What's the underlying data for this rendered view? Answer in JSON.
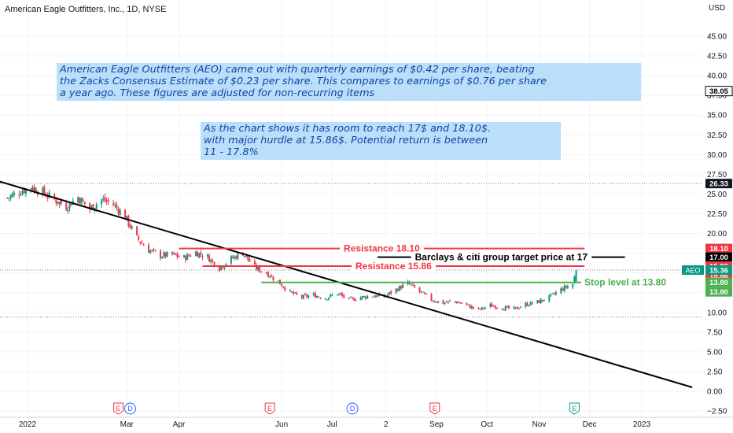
{
  "header": {
    "title": "American Eagle Outfitters, Inc., 1D, NYSE"
  },
  "annotations": {
    "note1": [
      "American Eagle Outfitters (AEO) came out with quarterly earnings of $0.42 per share, beating",
      "the Zacks Consensus Estimate of $0.23 per share. This compares to earnings of $0.76 per share",
      "a year ago. These figures are adjusted for non-recurring items"
    ],
    "note2": [
      "As the chart shows it has room to reach 17$ and 18.10$.",
      "with major hurdle at 15.86$. Potential return is between",
      "11 - 17.8%"
    ]
  },
  "chart_data": {
    "type": "candlestick",
    "symbol": "AEO",
    "currency": "USD",
    "ylim": [
      -2.5,
      46
    ],
    "y_ticks": [
      -2.5,
      0,
      2.5,
      5,
      7.5,
      10,
      12.5,
      15,
      17.5,
      20,
      22.5,
      25,
      27.5,
      30,
      32.5,
      35,
      37.5,
      40,
      42.5,
      45
    ],
    "y_tick_labels": [
      "−2.50",
      "0.00",
      "2.50",
      "5.00",
      "7.50",
      "10.00",
      "12.50",
      "15.00",
      "17.50",
      "20.00",
      "22.50",
      "25.00",
      "27.50",
      "30.00",
      "32.50",
      "35.00",
      "37.50",
      "40.00",
      "42.50",
      "45.00"
    ],
    "x_tick_labels": [
      {
        "date": "2022-01-01",
        "label": "2022"
      },
      {
        "date": "2022-03-01",
        "label": "Mar"
      },
      {
        "date": "2022-04-01",
        "label": "Apr"
      },
      {
        "date": "2022-06-01",
        "label": "Jun"
      },
      {
        "date": "2022-07-01",
        "label": "Jul"
      },
      {
        "date": "2022-08-02",
        "label": "2"
      },
      {
        "date": "2022-09-01",
        "label": "Sep"
      },
      {
        "date": "2022-10-01",
        "label": "Oct"
      },
      {
        "date": "2022-11-01",
        "label": "Nov"
      },
      {
        "date": "2022-12-01",
        "label": "Dec"
      },
      {
        "date": "2023-01-01",
        "label": "2023"
      }
    ],
    "price_series": [
      {
        "date": "2021-12-20",
        "close": 24.5
      },
      {
        "date": "2021-12-27",
        "close": 25.3
      },
      {
        "date": "2022-01-03",
        "close": 25.9
      },
      {
        "date": "2022-01-10",
        "close": 25.2
      },
      {
        "date": "2022-01-17",
        "close": 24.3
      },
      {
        "date": "2022-01-24",
        "close": 23.4
      },
      {
        "date": "2022-01-31",
        "close": 24.6
      },
      {
        "date": "2022-02-07",
        "close": 23.1
      },
      {
        "date": "2022-02-14",
        "close": 24.3
      },
      {
        "date": "2022-02-21",
        "close": 23.7
      },
      {
        "date": "2022-02-28",
        "close": 22.1
      },
      {
        "date": "2022-03-07",
        "close": 19.4
      },
      {
        "date": "2022-03-14",
        "close": 17.9
      },
      {
        "date": "2022-03-21",
        "close": 17.2
      },
      {
        "date": "2022-03-28",
        "close": 17.3
      },
      {
        "date": "2022-04-04",
        "close": 16.9
      },
      {
        "date": "2022-04-11",
        "close": 17.6
      },
      {
        "date": "2022-04-18",
        "close": 17.0
      },
      {
        "date": "2022-04-25",
        "close": 15.6
      },
      {
        "date": "2022-05-02",
        "close": 16.8
      },
      {
        "date": "2022-05-09",
        "close": 17.5
      },
      {
        "date": "2022-05-16",
        "close": 15.7
      },
      {
        "date": "2022-05-23",
        "close": 15.0
      },
      {
        "date": "2022-05-30",
        "close": 13.9
      },
      {
        "date": "2022-06-06",
        "close": 12.5
      },
      {
        "date": "2022-06-13",
        "close": 11.9
      },
      {
        "date": "2022-06-20",
        "close": 12.2
      },
      {
        "date": "2022-06-27",
        "close": 11.8
      },
      {
        "date": "2022-07-04",
        "close": 12.4
      },
      {
        "date": "2022-07-11",
        "close": 11.6
      },
      {
        "date": "2022-07-18",
        "close": 11.9
      },
      {
        "date": "2022-07-25",
        "close": 12.1
      },
      {
        "date": "2022-08-01",
        "close": 12.0
      },
      {
        "date": "2022-08-08",
        "close": 12.9
      },
      {
        "date": "2022-08-15",
        "close": 13.7
      },
      {
        "date": "2022-08-22",
        "close": 12.6
      },
      {
        "date": "2022-08-29",
        "close": 11.6
      },
      {
        "date": "2022-09-05",
        "close": 11.2
      },
      {
        "date": "2022-09-12",
        "close": 11.4
      },
      {
        "date": "2022-09-19",
        "close": 10.9
      },
      {
        "date": "2022-09-26",
        "close": 10.3
      },
      {
        "date": "2022-10-03",
        "close": 10.9
      },
      {
        "date": "2022-10-10",
        "close": 10.6
      },
      {
        "date": "2022-10-17",
        "close": 10.4
      },
      {
        "date": "2022-10-24",
        "close": 11.0
      },
      {
        "date": "2022-10-31",
        "close": 11.3
      },
      {
        "date": "2022-11-07",
        "close": 11.9
      },
      {
        "date": "2022-11-14",
        "close": 12.9
      },
      {
        "date": "2022-11-21",
        "close": 13.6
      },
      {
        "date": "2022-11-23",
        "close": 15.36
      }
    ],
    "trendline": {
      "start": {
        "date": "2021-12-01",
        "value": 27.5
      },
      "end": {
        "date": "2023-01-31",
        "value": 0.5
      }
    },
    "levels": [
      {
        "name": "Resistance 18.10",
        "value": 18.1,
        "start": "2022-04-01",
        "end": "2022-11-28",
        "color": "#f23645",
        "label": "Resistance 18.10"
      },
      {
        "name": "Resistance 15.86",
        "value": 15.86,
        "start": "2022-04-15",
        "end": "2022-11-28",
        "color": "#f23645",
        "label": "Resistance 15.86"
      },
      {
        "name": "Barclays & citi group target",
        "value": 17.0,
        "start": "2022-07-28",
        "end": "2022-12-22",
        "color": "#000000",
        "label": "Barclays & citi group target price at 17"
      },
      {
        "name": "Stop level",
        "value": 13.8,
        "start": "2022-05-20",
        "end": "2022-11-26",
        "color": "#4caf50",
        "label": "Stop level at 13.80"
      }
    ],
    "hlines": [
      {
        "value": 26.33,
        "style": "dotted"
      },
      {
        "value": 15.36,
        "style": "dotted"
      },
      {
        "value": 9.4,
        "style": "dotted"
      }
    ],
    "price_badges": [
      {
        "value": 38.05,
        "label": "38.05",
        "bg": "#ffffff",
        "fg": "#000000",
        "border": "#000000"
      },
      {
        "value": 26.33,
        "label": "26.33",
        "bg": "#131722",
        "fg": "#ffffff"
      },
      {
        "value": 18.1,
        "label": "18.10",
        "bg": "#f23645",
        "fg": "#ffffff"
      },
      {
        "value": 18.1,
        "label": "18.10",
        "bg": "#f23645",
        "fg": "#ffffff",
        "stack": 1
      },
      {
        "value": 17.0,
        "label": "17.00",
        "bg": "#000000",
        "fg": "#ffffff"
      },
      {
        "value": 17.0,
        "label": "17.00",
        "bg": "#000000",
        "fg": "#ffffff",
        "stack": 1
      },
      {
        "value": 15.86,
        "label": "15.86",
        "bg": "#f23645",
        "fg": "#ffffff"
      },
      {
        "value": 15.86,
        "label": "15.86",
        "bg": "#f23645",
        "fg": "#ffffff",
        "stack": 1
      },
      {
        "value": 15.36,
        "label": "15.36",
        "bg": "#089981",
        "fg": "#ffffff",
        "tag": "AEO"
      },
      {
        "value": 13.8,
        "label": "13.80",
        "bg": "#4caf50",
        "fg": "#ffffff"
      },
      {
        "value": 13.8,
        "label": "13.80",
        "bg": "#4caf50",
        "fg": "#ffffff",
        "stack": 1
      }
    ],
    "events": [
      {
        "date": "2022-02-24",
        "type": "E",
        "color": "#f23645"
      },
      {
        "date": "2022-03-03",
        "type": "D",
        "color": "#2962ff"
      },
      {
        "date": "2022-05-25",
        "type": "E",
        "color": "#f23645"
      },
      {
        "date": "2022-07-13",
        "type": "D",
        "color": "#2962ff"
      },
      {
        "date": "2022-08-31",
        "type": "E",
        "color": "#f23645"
      },
      {
        "date": "2022-11-22",
        "type": "E",
        "color": "#089981"
      }
    ],
    "colors": {
      "up": "#089981",
      "down": "#f23645",
      "trend": "#000000",
      "grid": "#f0f3fa"
    }
  }
}
